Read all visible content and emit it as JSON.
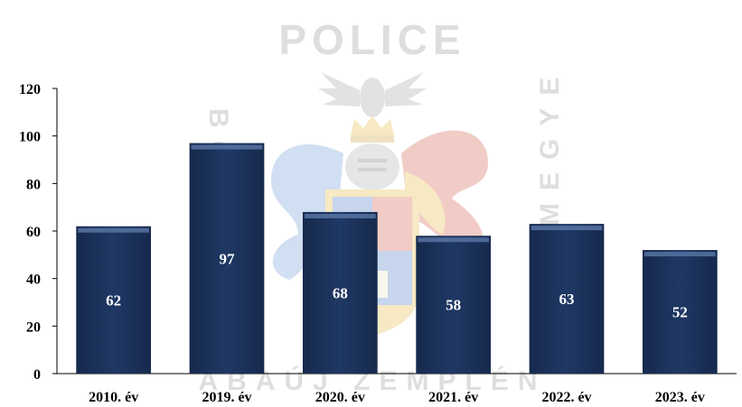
{
  "chart_data": {
    "type": "bar",
    "title": "",
    "categories": [
      "2010. év",
      "2019. év",
      "2020. év",
      "2021. év",
      "2022. év",
      "2023. év"
    ],
    "values": [
      62,
      97,
      68,
      58,
      63,
      52
    ],
    "y_ticks": [
      0,
      20,
      40,
      60,
      80,
      100,
      120
    ],
    "ylim": [
      0,
      120
    ],
    "xlabel": "",
    "ylabel": "",
    "grid": false,
    "legend": "none",
    "data_labels": "inside bars"
  },
  "colors": {
    "bar": "#1f3864",
    "bar_dark": "#16294d",
    "bar_top": "#5b78a8",
    "data_label": "#ffffff",
    "axis": "#000000"
  },
  "watermark": {
    "text": "POLICE",
    "ring_text_left": "BORSOD",
    "ring_text_right": "MEGYE",
    "ring_text_bottom": "ABAÚJ ZEMPLÉN"
  }
}
